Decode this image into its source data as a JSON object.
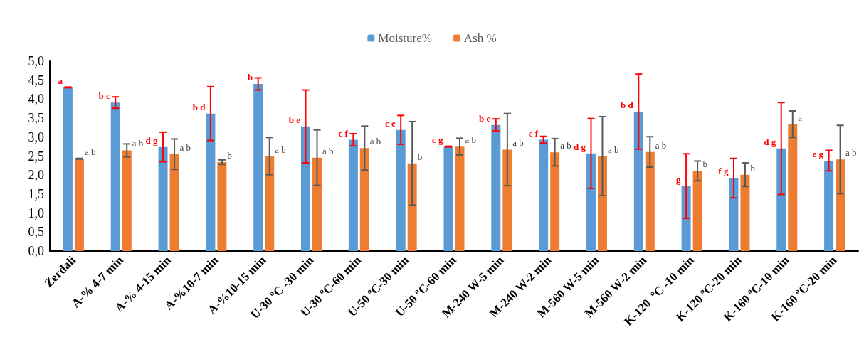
{
  "chart_data": {
    "type": "bar",
    "categories": [
      "Zerdali",
      "A-% 4-7 min",
      "A-% 4-15 min",
      "A-%10-7 min",
      "A-%10-15 min",
      "U-30 ºC -30 min",
      "U-30 ºC-60 min",
      "U-50 ºC-30 min",
      "U-50 ºC-60 min",
      "M-240 W-5 min",
      "M-240 W-2 min",
      "M-560 W-5 min",
      "M-560 W-2 min",
      "K-120  ºC -10 min",
      "K-120 ºC-20 min",
      "K-160 ºC-10 min",
      "K-160 ºC-20 min"
    ],
    "series": [
      {
        "name": "Moisture%",
        "color": "#5b9bd5",
        "values": [
          4.31,
          3.91,
          2.74,
          3.62,
          4.4,
          3.28,
          2.93,
          3.19,
          2.75,
          3.32,
          2.93,
          2.57,
          3.67,
          1.71,
          1.92,
          2.7,
          2.38
        ],
        "errors": [
          0.01,
          0.15,
          0.39,
          0.71,
          0.16,
          0.96,
          0.16,
          0.38,
          0.01,
          0.16,
          0.09,
          0.92,
          0.99,
          0.85,
          0.52,
          1.21,
          0.27
        ],
        "value_labels": [
          "a",
          "b c",
          "d g",
          "b d",
          "b",
          "b e",
          "c f",
          "c e",
          "c g",
          "b e",
          "c f",
          "d g",
          "b d",
          "g",
          "f g",
          "d g",
          "e g"
        ]
      },
      {
        "name": "Ash %",
        "color": "#ed7d31",
        "values": [
          2.43,
          2.65,
          2.55,
          2.34,
          2.5,
          2.46,
          2.71,
          2.31,
          2.75,
          2.67,
          2.6,
          2.5,
          2.61,
          2.11,
          2.01,
          3.34,
          2.41
        ],
        "errors": [
          0.01,
          0.17,
          0.4,
          0.06,
          0.49,
          0.73,
          0.58,
          1.1,
          0.22,
          0.95,
          0.36,
          1.04,
          0.4,
          0.26,
          0.31,
          0.35,
          0.9
        ],
        "value_labels": [
          "a b",
          "a b",
          "a b",
          "b",
          "a b",
          "a b",
          "a b",
          "b",
          "a b",
          "a b",
          "a b",
          "a b",
          "a b",
          "b",
          "b",
          "a",
          "a b"
        ]
      }
    ],
    "ylim": [
      0,
      5
    ],
    "yticks": [
      {
        "value": 0,
        "label": "0,0"
      },
      {
        "value": 0.5,
        "label": "0,5"
      },
      {
        "value": 1,
        "label": "1,0"
      },
      {
        "value": 1.5,
        "label": "1,5"
      },
      {
        "value": 2,
        "label": "2,0"
      },
      {
        "value": 2.5,
        "label": "2,5"
      },
      {
        "value": 3,
        "label": "3,0"
      },
      {
        "value": 3.5,
        "label": "3,5"
      },
      {
        "value": 4,
        "label": "4,0"
      },
      {
        "value": 4.5,
        "label": "4,5"
      },
      {
        "value": 5,
        "label": "5,0"
      }
    ],
    "grid": false,
    "legend": "top"
  }
}
